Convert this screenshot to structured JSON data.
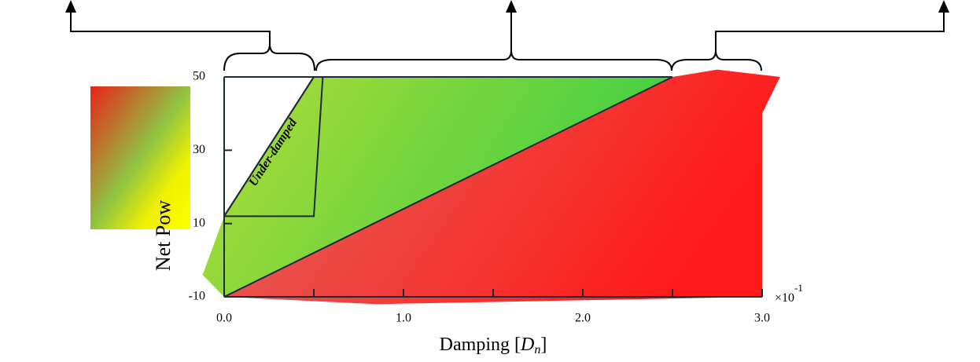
{
  "chart_data": {
    "type": "region",
    "x_label": {
      "text": "Damping [",
      "symbol": "D",
      "subscript": "n",
      "close": "]"
    },
    "y_label": "Net Pow",
    "x_scale_label": {
      "base": "×10",
      "exponent": "-1"
    },
    "annotation": "Under-damped",
    "xlim": [
      0,
      3
    ],
    "ylim": [
      -10,
      50
    ],
    "xticks": [
      {
        "value": 0,
        "label": "0.0"
      },
      {
        "value": 1,
        "label": "1.0"
      },
      {
        "value": 2,
        "label": "2.0"
      },
      {
        "value": 3,
        "label": "3.0"
      }
    ],
    "xminorticks": [
      0.5,
      1.5,
      2.5
    ],
    "yticks": [
      -10,
      10,
      30,
      50
    ],
    "regions": [
      {
        "colors": [
          "#b4dc36",
          "#3ecf45"
        ],
        "x": [
          -0.12,
          0,
          0.5,
          1.7,
          2.5,
          0
        ],
        "y": [
          -4,
          12,
          50,
          50,
          50,
          -10
        ]
      },
      {
        "colors": [
          "#e0675e",
          "#ff1a1a"
        ],
        "x": [
          0,
          2.5,
          2.75,
          3.1,
          3.0,
          3.0,
          0.85
        ],
        "y": [
          -10,
          50,
          52,
          50,
          40,
          -10,
          -12
        ]
      }
    ],
    "outlines": [
      {
        "x": [
          0,
          0.5,
          2.5,
          0
        ],
        "y": [
          12,
          50,
          50,
          -10
        ]
      },
      {
        "x": [
          0,
          0.5,
          0.55,
          0.5,
          0
        ],
        "y": [
          12,
          50,
          50,
          12,
          12
        ]
      }
    ]
  }
}
